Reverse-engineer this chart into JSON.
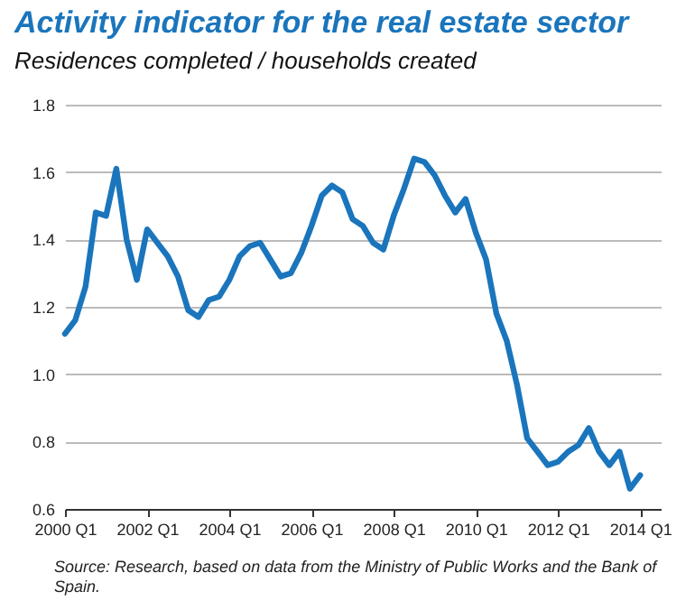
{
  "chart_data": {
    "type": "line",
    "title": "Activity indicator for the real estate sector",
    "subtitle": "Residences completed / households created",
    "categories": [
      "2000 Q1",
      null,
      null,
      null,
      null,
      null,
      null,
      null,
      "2002 Q1",
      null,
      null,
      null,
      null,
      null,
      null,
      null,
      "2004 Q1",
      null,
      null,
      null,
      null,
      null,
      null,
      null,
      "2006 Q1",
      null,
      null,
      null,
      null,
      null,
      null,
      null,
      "2008 Q1",
      null,
      null,
      null,
      null,
      null,
      null,
      null,
      "2010 Q1",
      null,
      null,
      null,
      null,
      null,
      null,
      null,
      "2012 Q1",
      null,
      null,
      null,
      null,
      null,
      null,
      null,
      "2014 Q1"
    ],
    "series": [
      {
        "color": "#1a75bc",
        "values": [
          1.12,
          1.16,
          1.26,
          1.48,
          1.47,
          1.61,
          1.4,
          1.28,
          1.43,
          1.39,
          1.35,
          1.29,
          1.19,
          1.17,
          1.22,
          1.23,
          1.28,
          1.35,
          1.38,
          1.39,
          1.34,
          1.29,
          1.3,
          1.36,
          1.44,
          1.53,
          1.56,
          1.54,
          1.46,
          1.44,
          1.39,
          1.37,
          1.47,
          1.55,
          1.64,
          1.63,
          1.59,
          1.53,
          1.48,
          1.52,
          1.42,
          1.34,
          1.18,
          1.1,
          0.97,
          0.81,
          0.77,
          0.73,
          0.74,
          0.77,
          0.79,
          0.84,
          0.77,
          0.73,
          0.77,
          0.66,
          0.7
        ]
      }
    ],
    "ylim": [
      0.6,
      1.8
    ],
    "yticks": [
      0.6,
      0.8,
      {
        "value": 1,
        "label": "1.0"
      },
      1.2,
      1.4,
      1.6,
      1.8
    ],
    "grid": "y",
    "line_style": "solid",
    "annotations": [
      "Source: Research, based on data from the Ministry of Public Works and the Bank of Spain."
    ]
  }
}
